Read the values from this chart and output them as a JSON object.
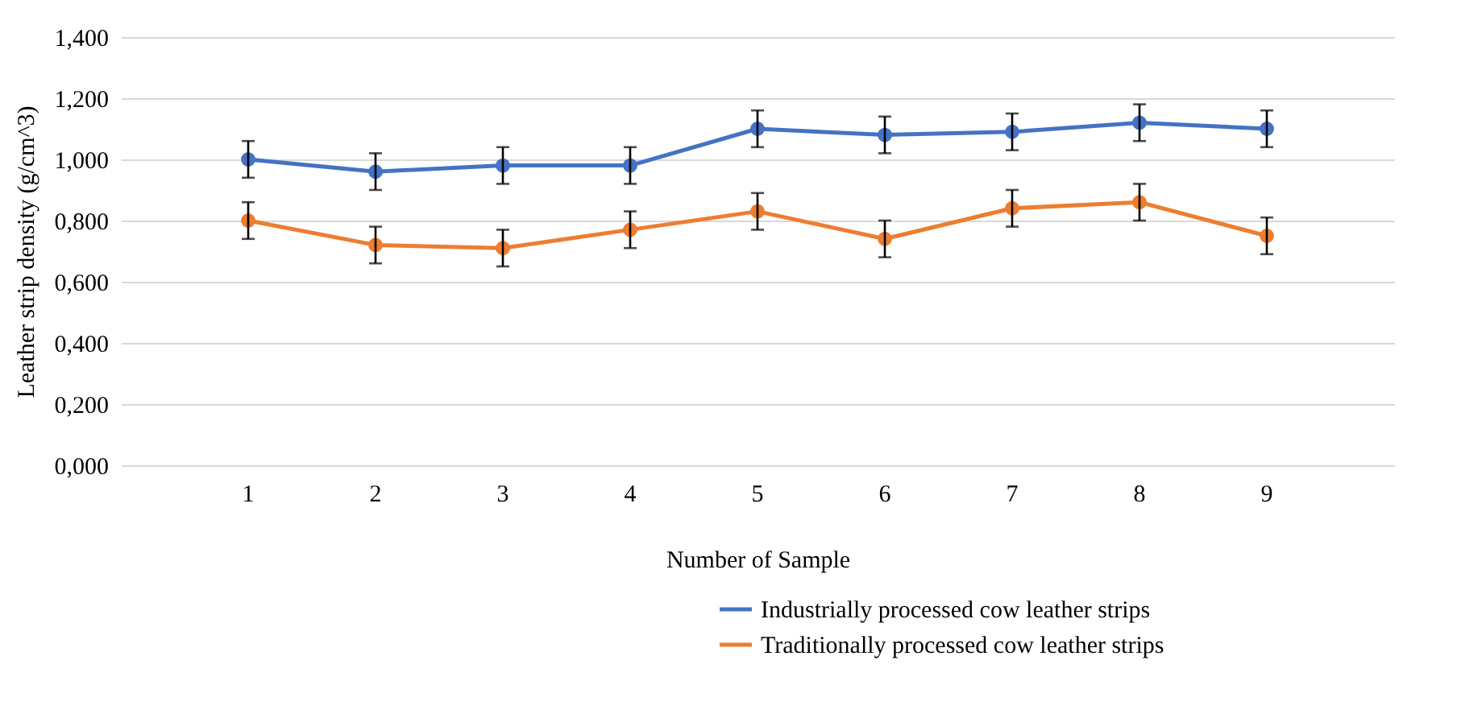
{
  "chart_data": {
    "type": "line",
    "xlabel": "Number of Sample",
    "ylabel": "Leather strip density (g/cm^3)",
    "categories": [
      "1",
      "2",
      "3",
      "4",
      "5",
      "6",
      "7",
      "8",
      "9"
    ],
    "series": [
      {
        "name": "Industrially processed cow leather strips",
        "color": "#4472c4",
        "values": [
          1.0,
          0.96,
          0.98,
          0.98,
          1.1,
          1.08,
          1.09,
          1.12,
          1.1
        ],
        "errors": [
          0.06,
          0.06,
          0.06,
          0.06,
          0.06,
          0.06,
          0.06,
          0.06,
          0.06
        ]
      },
      {
        "name": "Traditionally processed cow leather strips",
        "color": "#ed7d31",
        "values": [
          0.8,
          0.72,
          0.71,
          0.77,
          0.83,
          0.74,
          0.84,
          0.86,
          0.75
        ],
        "errors": [
          0.06,
          0.06,
          0.06,
          0.06,
          0.06,
          0.06,
          0.06,
          0.06,
          0.06
        ]
      }
    ],
    "ylim": [
      0,
      1.4
    ],
    "yticks": [
      {
        "value": 0,
        "label": "0,000"
      },
      {
        "value": 0.2,
        "label": "0,200"
      },
      {
        "value": 0.4,
        "label": "0,400"
      },
      {
        "value": 0.6,
        "label": "0,600"
      },
      {
        "value": 0.8,
        "label": "0,800"
      },
      {
        "value": 1.0,
        "label": "1,000"
      },
      {
        "value": 1.2,
        "label": "1,200"
      },
      {
        "value": 1.4,
        "label": "1,400"
      }
    ],
    "grid": "y",
    "legend": "bottom right",
    "marker": "circle",
    "line_style": "solid"
  }
}
